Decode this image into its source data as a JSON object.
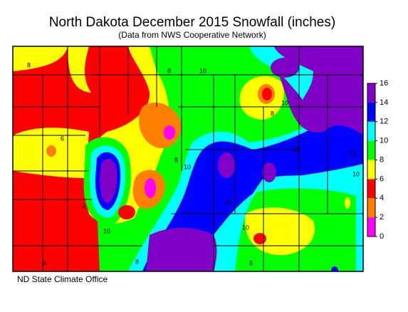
{
  "title": "North Dakota December 2015 Snowfall (inches)",
  "subtitle": "(Data from NWS Cooperative Network)",
  "credit": "ND State Climate Office",
  "legend": {
    "ticks": [
      0,
      2,
      4,
      6,
      8,
      10,
      12,
      14,
      16
    ],
    "colors": [
      "#ff00ff",
      "#ff8000",
      "#ff0000",
      "#ffff00",
      "#00ff00",
      "#00ffff",
      "#0000ff",
      "#8000c8"
    ]
  },
  "contour_labels": [
    "8",
    "4",
    "8",
    "10",
    "8",
    "10",
    "8",
    "12",
    "6",
    "10",
    "10",
    "10",
    "12",
    "10",
    "8",
    "10",
    "8",
    "6"
  ]
}
